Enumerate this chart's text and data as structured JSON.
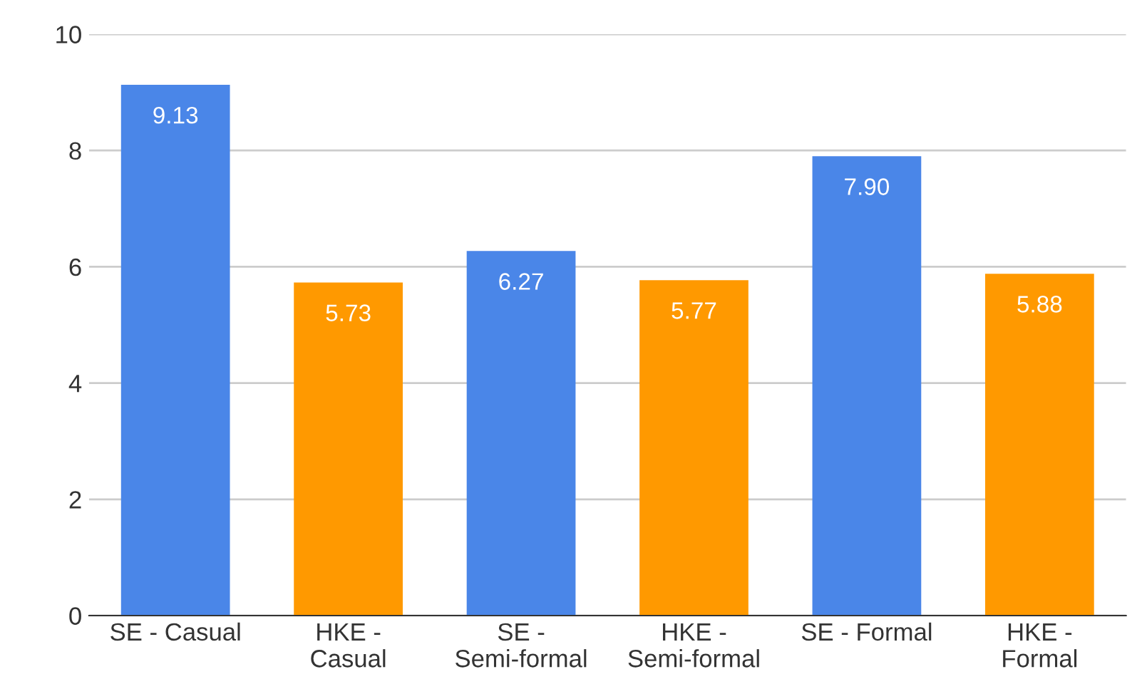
{
  "chart_data": {
    "type": "bar",
    "categories": [
      "SE - Casual",
      "HKE -\nCasual",
      "SE -\nSemi-formal",
      "HKE -\nSemi-formal",
      "SE - Formal",
      "HKE -\nFormal"
    ],
    "values": [
      9.13,
      5.73,
      6.27,
      5.77,
      7.9,
      5.88
    ],
    "value_labels": [
      "9.13",
      "5.73",
      "6.27",
      "5.77",
      "7.90",
      "5.88"
    ],
    "colors": [
      "#4a86e8",
      "#ff9900",
      "#4a86e8",
      "#ff9900",
      "#4a86e8",
      "#ff9900"
    ],
    "ylim": [
      0,
      10
    ],
    "yticks": [
      0,
      2,
      4,
      6,
      8,
      10
    ],
    "grid": "y"
  }
}
